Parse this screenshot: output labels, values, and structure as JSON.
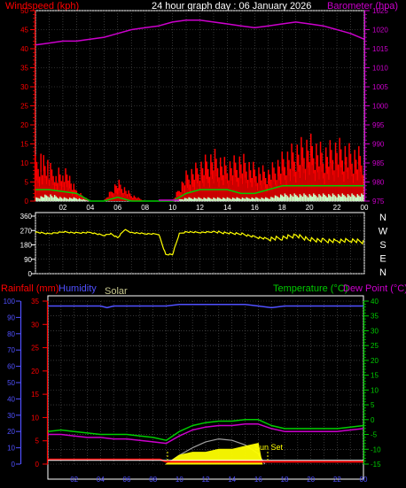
{
  "header": {
    "windspeed_label": "Windspeed (kph)",
    "graph_title": "24 hour graph day : 06 January 2026",
    "barometer_label": "Barometer (hpa)"
  },
  "lower_header": {
    "rainfall_label": "Rainfall (mm)",
    "humidity_label": "Humidity",
    "solar_label": "Solar",
    "temperature_label": "Temperature (°C)",
    "dewpoint_label": "Dew Point (°C)"
  },
  "annotations": {
    "sunset_label": "Sun Set"
  },
  "colors": {
    "windspeed": "#ff0000",
    "gust": "#ff0000",
    "wind_avg": "#00cc00",
    "wind_low": "#c8ffc8",
    "barometer": "#cc00cc",
    "direction": "#ffff00",
    "rain": "#ff0000",
    "humidity": "#5050ff",
    "solar": "#ffff00",
    "solar_curve": "#a0a0a0",
    "temperature": "#00cc00",
    "dewpoint": "#cc00cc",
    "axis_left_red": "#ff0000",
    "axis_left_blue": "#5050ff",
    "axis_right_green": "#00cc00",
    "axis_right_magenta": "#cc00cc",
    "hour_labels": "#5050ff"
  },
  "chart_data": [
    {
      "id": "wind",
      "type": "line",
      "title": "24 hour graph day : 06 January 2026",
      "xlabel": "",
      "x_ticks": [
        "02",
        "04",
        "06",
        "08",
        "10",
        "12",
        "14",
        "16",
        "18",
        "20",
        "22",
        "00"
      ],
      "xlim": [
        0,
        24
      ],
      "grid": true,
      "y_left": {
        "label": "Windspeed (kph)",
        "ticks": [
          "0",
          "5",
          "10",
          "15",
          "20",
          "25",
          "30",
          "35",
          "40",
          "45",
          "50"
        ],
        "ylim": [
          0,
          50
        ]
      },
      "y_right": {
        "label": "Barometer (hpa)",
        "ticks": [
          "975",
          "980",
          "985",
          "990",
          "995",
          "1000",
          "1005",
          "1010",
          "1015",
          "1020",
          "1025"
        ],
        "ylim": [
          975,
          1025
        ]
      },
      "series": [
        {
          "axis": "right",
          "x": [
            0,
            1,
            2,
            3,
            4,
            5,
            6,
            7,
            8,
            9,
            10,
            11,
            12,
            13,
            14,
            15,
            16,
            17,
            18,
            19,
            20,
            21,
            22,
            23,
            24
          ],
          "y": [
            1016,
            1016.5,
            1017,
            1017,
            1017.5,
            1018,
            1019,
            1020,
            1020.5,
            1021,
            1022,
            1022.5,
            1022.5,
            1022,
            1021.5,
            1021,
            1020.5,
            1021,
            1021.5,
            1022,
            1021.5,
            1021,
            1020,
            1019,
            1017.5
          ]
        },
        {
          "axis": "left",
          "x": [
            0,
            0.5,
            1,
            1.5,
            2,
            2.5,
            3,
            4,
            5,
            6,
            7,
            8,
            9,
            10,
            11,
            12,
            13,
            14,
            15,
            16,
            17,
            18,
            19,
            20,
            21,
            22,
            23,
            24
          ],
          "y": [
            6,
            9,
            7,
            6,
            5,
            4,
            1,
            0,
            0,
            3,
            1,
            0,
            0,
            0,
            4,
            6,
            8,
            7,
            8,
            6,
            5,
            8,
            10,
            12,
            9,
            11,
            10,
            9
          ]
        },
        {
          "axis": "left",
          "x": [
            0,
            0.5,
            1,
            1.5,
            2,
            2.5,
            3,
            4,
            5,
            6,
            7,
            8,
            9,
            10,
            11,
            12,
            13,
            14,
            15,
            16,
            17,
            18,
            19,
            20,
            21,
            22,
            23,
            24
          ],
          "y": [
            12,
            14,
            10,
            10,
            9,
            8,
            3,
            0,
            0,
            6,
            2,
            0,
            0,
            0,
            8,
            11,
            14,
            11,
            13,
            10,
            9,
            13,
            16,
            18,
            15,
            17,
            15,
            14
          ]
        },
        {
          "axis": "left",
          "x": [
            0,
            1,
            2,
            3,
            4,
            5,
            6,
            7,
            8,
            9,
            10,
            11,
            12,
            13,
            14,
            15,
            16,
            17,
            18,
            19,
            20,
            21,
            22,
            23,
            24
          ],
          "y": [
            3,
            3,
            2.5,
            2,
            0,
            0,
            1,
            0,
            0,
            0,
            0,
            2,
            3,
            3,
            3,
            2,
            2,
            3,
            4,
            4,
            4,
            4,
            4,
            4,
            4
          ]
        },
        {
          "axis": "left",
          "x": [
            0,
            1,
            2,
            3,
            4,
            5,
            6,
            7,
            8,
            9,
            10,
            11,
            12,
            13,
            14,
            15,
            16,
            17,
            18,
            19,
            20,
            21,
            22,
            23,
            24
          ],
          "y": [
            1,
            2,
            1,
            1,
            0,
            0,
            0,
            0,
            0,
            0,
            0,
            1,
            1,
            1,
            1,
            1,
            1,
            1,
            2,
            2,
            2,
            2,
            2,
            2,
            2
          ]
        }
      ]
    },
    {
      "id": "direction",
      "type": "line",
      "y_ticks": [
        "360",
        "270",
        "180",
        "90",
        "0"
      ],
      "ylim": [
        0,
        360
      ],
      "compass_labels": [
        "N",
        "W",
        "S",
        "E",
        "N"
      ],
      "xlim": [
        0,
        24
      ],
      "grid": true,
      "series": [
        {
          "x": [
            0,
            1,
            2,
            3,
            4,
            5,
            5.5,
            6,
            6.5,
            7,
            8,
            9,
            9.5,
            10,
            10.5,
            11,
            12,
            13,
            14,
            15,
            16,
            17,
            18,
            19,
            20,
            21,
            22,
            23,
            24
          ],
          "y": [
            260,
            250,
            262,
            255,
            258,
            240,
            250,
            225,
            275,
            258,
            250,
            248,
            120,
            120,
            250,
            262,
            258,
            262,
            255,
            250,
            230,
            218,
            225,
            240,
            215,
            208,
            205,
            210,
            200
          ]
        }
      ]
    },
    {
      "id": "climate",
      "type": "line",
      "xlim": [
        0,
        24
      ],
      "x_ticks": [
        "02",
        "04",
        "06",
        "08",
        "10",
        "12",
        "14",
        "16",
        "18",
        "20",
        "22",
        "00"
      ],
      "grid": true,
      "y_left_humidity": {
        "label": "Humidity",
        "ticks": [
          "0",
          "10",
          "20",
          "30",
          "40",
          "50",
          "60",
          "70",
          "80",
          "90",
          "100"
        ],
        "ylim": [
          0,
          100
        ]
      },
      "y_left_rain": {
        "label": "Rainfall (mm)",
        "ticks": [
          "0",
          "5",
          "10",
          "15",
          "20",
          "25",
          "30",
          "35"
        ],
        "ylim": [
          0,
          35
        ]
      },
      "y_right": {
        "label": "Temperature (°C)",
        "ticks": [
          "-15",
          "-10",
          "-5",
          "0",
          "5",
          "10",
          "15",
          "20",
          "25",
          "30",
          "35",
          "40"
        ],
        "ylim": [
          -15,
          40
        ]
      },
      "series": [
        {
          "axis": "humidity",
          "x": [
            0,
            1,
            2,
            3,
            4,
            4.5,
            5,
            6,
            7,
            8,
            9,
            10,
            11,
            12,
            13,
            14,
            15,
            16,
            17,
            18,
            19,
            20,
            21,
            22,
            23,
            24
          ],
          "y": [
            97,
            97,
            97,
            97,
            97,
            96,
            97,
            97,
            97,
            97,
            97,
            98,
            98,
            98,
            98,
            98,
            98,
            97,
            96,
            97,
            97,
            97,
            97,
            97,
            97,
            97
          ]
        },
        {
          "axis": "temperature",
          "x": [
            0,
            1,
            2,
            3,
            4,
            5,
            6,
            7,
            8,
            9,
            10,
            11,
            12,
            13,
            14,
            15,
            16,
            17,
            18,
            19,
            20,
            21,
            22,
            23,
            24
          ],
          "y": [
            -4,
            -3.5,
            -4,
            -4.5,
            -5,
            -5,
            -5,
            -5.5,
            -6,
            -7,
            -4,
            -2,
            -1,
            -0.5,
            -0.5,
            0,
            0,
            -2,
            -3,
            -3,
            -3,
            -3,
            -3,
            -2.5,
            -2
          ]
        },
        {
          "axis": "temperature",
          "x": [
            0,
            1,
            2,
            3,
            4,
            5,
            6,
            7,
            8,
            9,
            10,
            11,
            12,
            13,
            14,
            15,
            16,
            17,
            18,
            19,
            20,
            21,
            22,
            23,
            24
          ],
          "y": [
            -5,
            -5,
            -5.5,
            -6,
            -6,
            -6.5,
            -6.5,
            -7,
            -7.5,
            -8,
            -5.5,
            -3.5,
            -2.5,
            -2,
            -2,
            -1.5,
            -1.5,
            -3,
            -4,
            -4,
            -4,
            -4,
            -4,
            -3.5,
            -3
          ]
        },
        {
          "axis": "rain",
          "x": [
            0,
            8.5,
            9,
            24
          ],
          "y": [
            1,
            1,
            0.5,
            0.5
          ]
        },
        {
          "axis": "rain",
          "x": [
            0,
            9,
            24
          ],
          "y": [
            0.8,
            0.8,
            0.8
          ]
        },
        {
          "axis": "temperature",
          "x": [
            9,
            10,
            11,
            12,
            13,
            14,
            15,
            16,
            16.3
          ],
          "y": [
            -15,
            -12,
            -11,
            -11,
            -10,
            -10,
            -9,
            -8,
            -15
          ]
        },
        {
          "axis": "temperature",
          "x": [
            9,
            10,
            11,
            12,
            13,
            14,
            15,
            16,
            16.5
          ],
          "y": [
            -15,
            -12,
            -9.5,
            -7.5,
            -6.5,
            -7,
            -8.5,
            -11.5,
            -15
          ]
        }
      ]
    }
  ]
}
